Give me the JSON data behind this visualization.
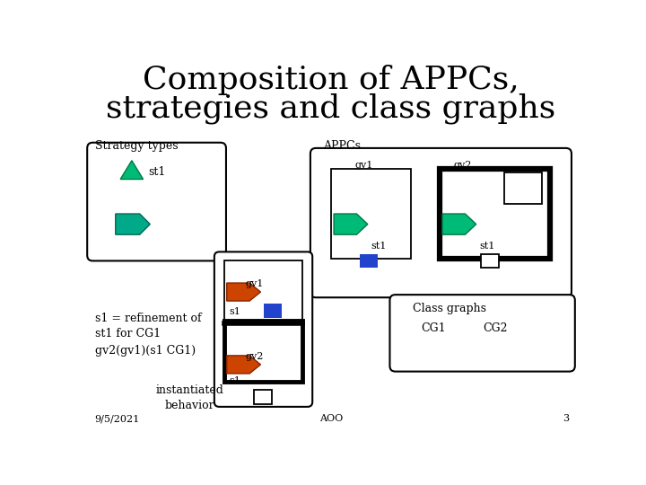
{
  "title_line1": "Composition of APPCs,",
  "title_line2": "strategies and class graphs",
  "title_fontsize": 26,
  "body_fontsize": 9,
  "bg_color": "#ffffff",
  "text_color": "#000000",
  "label_strategy_types": "Strategy types",
  "label_appcs": "APPCs",
  "label_class_graphs": "Class graphs",
  "label_gv1": "gv1",
  "label_gv2": "gv2",
  "label_st1": "st1",
  "label_s1": "s1",
  "label_s1_text": "s1 = refinement of\nst1 for CG1",
  "label_gv2_func": "gv2(gv1)(s1 CG1)",
  "label_instantiated": "instantiated\nbehavior",
  "label_date": "9/5/2021",
  "label_aoo": "AOO",
  "label_3": "3",
  "label_cg1": "CG1",
  "label_cg2": "CG2",
  "green_fill": "#00bb77",
  "teal_fill": "#00aa88",
  "blue_fill": "#2244cc",
  "orange_fill": "#cc4400"
}
